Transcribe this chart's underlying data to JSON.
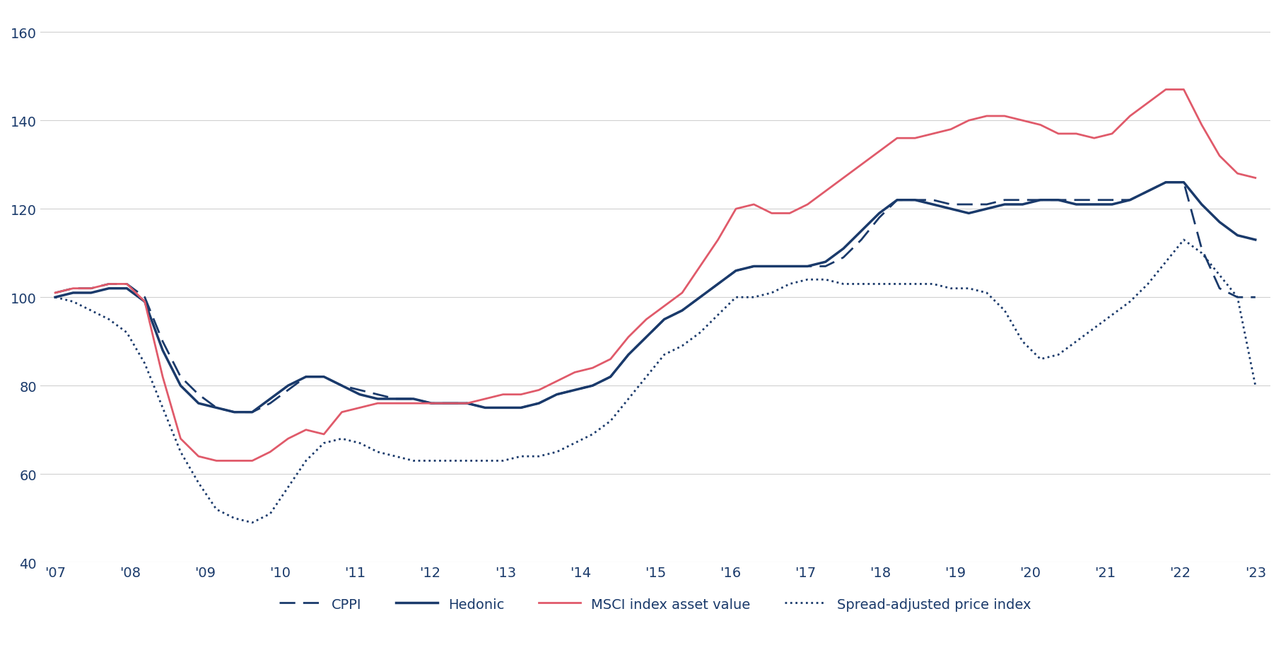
{
  "years": [
    "'07",
    "'08",
    "'09",
    "'10",
    "'11",
    "'12",
    "'13",
    "'14",
    "'15",
    "'16",
    "'17",
    "'18",
    "'19",
    "'20",
    "'21",
    "'22",
    "'23"
  ],
  "cppi_quarterly": [
    101,
    102,
    102,
    103,
    103,
    100,
    90,
    82,
    78,
    75,
    74,
    74,
    76,
    79,
    82,
    82,
    80,
    79,
    78,
    77,
    77,
    76,
    76,
    76,
    75,
    75,
    75,
    76,
    78,
    79,
    80,
    82,
    87,
    91,
    95,
    97,
    100,
    103,
    106,
    107,
    107,
    107,
    107,
    107,
    109,
    113,
    118,
    122,
    122,
    122,
    121,
    121,
    121,
    122,
    122,
    122,
    122,
    122,
    122,
    122,
    122,
    124,
    126,
    126,
    111,
    102,
    100,
    100
  ],
  "hedonic_quarterly": [
    100,
    101,
    101,
    102,
    102,
    99,
    88,
    80,
    76,
    75,
    74,
    74,
    77,
    80,
    82,
    82,
    80,
    78,
    77,
    77,
    77,
    76,
    76,
    76,
    75,
    75,
    75,
    76,
    78,
    79,
    80,
    82,
    87,
    91,
    95,
    97,
    100,
    103,
    106,
    107,
    107,
    107,
    107,
    108,
    111,
    115,
    119,
    122,
    122,
    121,
    120,
    119,
    120,
    121,
    121,
    122,
    122,
    121,
    121,
    121,
    122,
    124,
    126,
    126,
    121,
    117,
    114,
    113
  ],
  "msci_quarterly": [
    101,
    102,
    102,
    103,
    103,
    99,
    82,
    68,
    64,
    63,
    63,
    63,
    65,
    68,
    70,
    69,
    74,
    75,
    76,
    76,
    76,
    76,
    76,
    76,
    77,
    78,
    78,
    79,
    81,
    83,
    84,
    86,
    91,
    95,
    98,
    101,
    107,
    113,
    120,
    121,
    119,
    119,
    121,
    124,
    127,
    130,
    133,
    136,
    136,
    137,
    138,
    140,
    141,
    141,
    140,
    139,
    137,
    137,
    136,
    137,
    141,
    144,
    147,
    147,
    139,
    132,
    128,
    127
  ],
  "spread_quarterly": [
    100,
    99,
    97,
    95,
    92,
    85,
    75,
    65,
    58,
    52,
    50,
    49,
    51,
    57,
    63,
    67,
    68,
    67,
    65,
    64,
    63,
    63,
    63,
    63,
    63,
    63,
    64,
    64,
    65,
    67,
    69,
    72,
    77,
    82,
    87,
    89,
    92,
    96,
    100,
    100,
    101,
    103,
    104,
    104,
    103,
    103,
    103,
    103,
    103,
    103,
    102,
    102,
    101,
    97,
    90,
    86,
    87,
    90,
    93,
    96,
    99,
    103,
    108,
    113,
    110,
    105,
    100,
    80
  ],
  "cppi_color": "#1a3a6b",
  "hedonic_color": "#1a3a6b",
  "msci_color": "#e05a6a",
  "spread_adj_color": "#1a3a6b",
  "ylim": [
    40,
    165
  ],
  "yticks": [
    40,
    60,
    80,
    100,
    120,
    140,
    160
  ],
  "background_color": "#ffffff",
  "grid_color": "#d0d0d0",
  "legend_labels": [
    "CPPI",
    "Hedonic",
    "MSCI index asset value",
    "Spread-adjusted price index"
  ]
}
